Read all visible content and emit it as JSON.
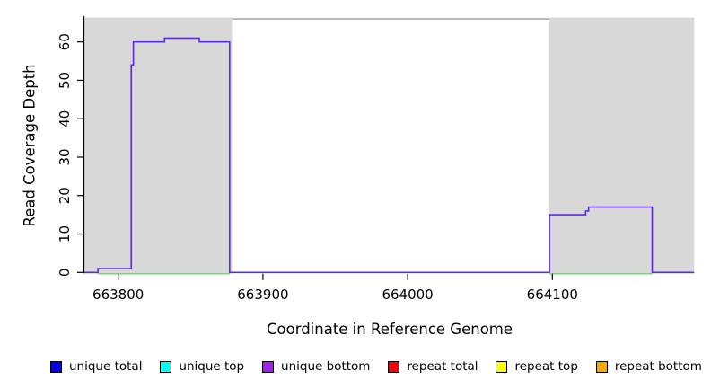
{
  "chart_data": {
    "type": "line",
    "title": "",
    "xlabel": "Coordinate in Reference Genome",
    "ylabel": "Read Coverage Depth",
    "xlim": [
      663776,
      664198
    ],
    "ylim": [
      0,
      66
    ],
    "x_ticks": [
      663800,
      663900,
      664000,
      664100
    ],
    "y_ticks": [
      0,
      10,
      20,
      30,
      40,
      50,
      60
    ],
    "grid": false,
    "top_border_color": "#909090",
    "axis_color": "#000000",
    "shaded_regions": [
      {
        "name": "left-shaded-region",
        "x_start": 663776,
        "x_end": 663878.6,
        "color": "#d8d8d8"
      },
      {
        "name": "right-shaded-region",
        "x_start": 664098,
        "x_end": 664198,
        "color": "#d8d8d8"
      }
    ],
    "series": [
      {
        "name": "unique bottom",
        "color": "#5c2be2",
        "style": "step",
        "points": [
          [
            663776,
            0
          ],
          [
            663786,
            0
          ],
          [
            663786,
            1
          ],
          [
            663809,
            1
          ],
          [
            663809,
            54
          ],
          [
            663810.5,
            54
          ],
          [
            663810.5,
            60
          ],
          [
            663832,
            60
          ],
          [
            663832,
            61
          ],
          [
            663856,
            61
          ],
          [
            663856,
            60
          ],
          [
            663877,
            60
          ],
          [
            663877,
            0
          ],
          [
            664098,
            0
          ],
          [
            664098,
            15
          ],
          [
            664123,
            15
          ],
          [
            664123,
            16
          ],
          [
            664125,
            16
          ],
          [
            664125,
            17
          ],
          [
            664169,
            17
          ],
          [
            664169,
            0
          ],
          [
            664198,
            0
          ]
        ]
      },
      {
        "name": "baseline-green",
        "color": "#7fc87f",
        "style": "baseline-segments",
        "y": 0,
        "segments": [
          [
            663786,
            663877
          ],
          [
            664098,
            664169
          ]
        ]
      }
    ]
  },
  "legend": {
    "items": [
      {
        "label": "unique total",
        "color": "#0000ff"
      },
      {
        "label": "unique top",
        "color": "#00ffff"
      },
      {
        "label": "unique bottom",
        "color": "#a020f0"
      },
      {
        "label": "repeat total",
        "color": "#ff0000"
      },
      {
        "label": "repeat top",
        "color": "#ffff00"
      },
      {
        "label": "repeat bottom",
        "color": "#ffa500"
      }
    ]
  }
}
